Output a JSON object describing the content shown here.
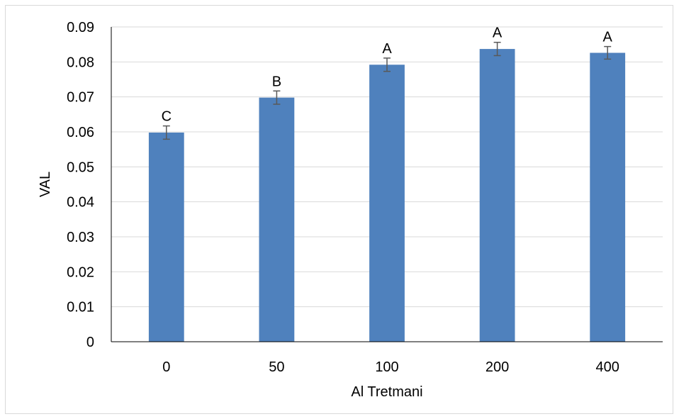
{
  "chart_data": {
    "type": "bar",
    "title": "",
    "xlabel": "Al Tretmani",
    "ylabel": "VAL",
    "categories": [
      "0",
      "50",
      "100",
      "200",
      "400"
    ],
    "values": [
      0.0598,
      0.0698,
      0.0792,
      0.0837,
      0.0826
    ],
    "error": [
      0.0019,
      0.0019,
      0.0019,
      0.0019,
      0.0018
    ],
    "significance_labels": [
      "C",
      "B",
      "A",
      "A",
      "A"
    ],
    "ylim": [
      0,
      0.09
    ],
    "yticks": [
      "0",
      "0.01",
      "0.02",
      "0.03",
      "0.04",
      "0.05",
      "0.06",
      "0.07",
      "0.08",
      "0.09"
    ],
    "grid": true,
    "legend": "none",
    "colors": {
      "bar": "#4f81bd",
      "grid": "#d9d9d9",
      "axis": "#000000",
      "error_bar": "#595959"
    }
  }
}
